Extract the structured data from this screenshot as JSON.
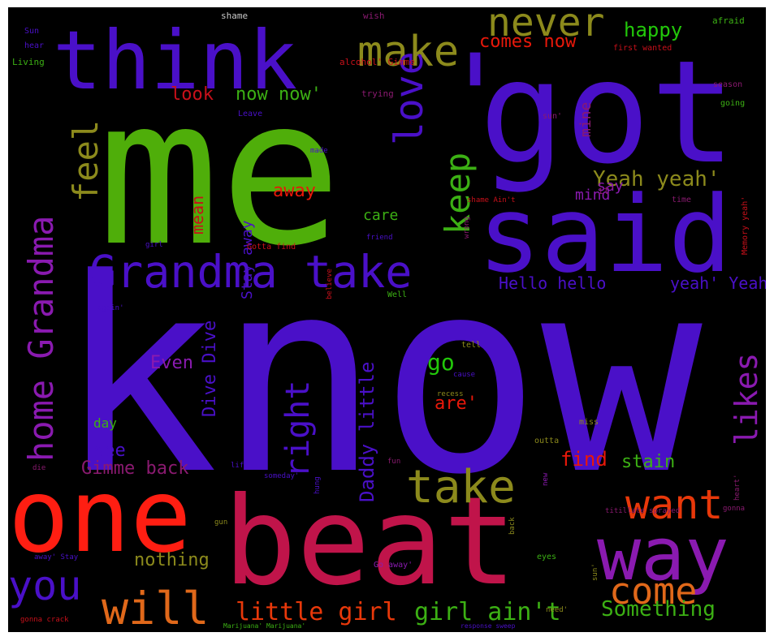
{
  "wordcloud": {
    "background": "#000000",
    "words": [
      {
        "text": "know",
        "color": "#4a10c8"
      },
      {
        "text": "me",
        "color": "#4fae0a"
      },
      {
        "text": "got",
        "color": "#4a10c8"
      },
      {
        "text": "'",
        "color": "#4a10c8"
      },
      {
        "text": "said",
        "color": "#4a10c8"
      },
      {
        "text": "beat",
        "color": "#c0144a"
      },
      {
        "text": "one",
        "color": "#ff1e12"
      },
      {
        "text": "think",
        "color": "#4a10c8"
      },
      {
        "text": "way",
        "color": "#8a1ab0"
      },
      {
        "text": "Grandma take",
        "color": "#4a10c8"
      },
      {
        "text": "make",
        "color": "#8c8a1c"
      },
      {
        "text": "never",
        "color": "#8c8a1c"
      },
      {
        "text": "love",
        "color": "#4a10c8"
      },
      {
        "text": "take",
        "color": "#8c8a1c"
      },
      {
        "text": "want",
        "color": "#e8380a"
      },
      {
        "text": "you",
        "color": "#4a10c8"
      },
      {
        "text": "will",
        "color": "#e0681a"
      },
      {
        "text": "come",
        "color": "#e0681a"
      },
      {
        "text": "home Grandma",
        "color": "#8a1ab0"
      },
      {
        "text": "feel",
        "color": "#8c8a1c"
      },
      {
        "text": "keep",
        "color": "#3cb014"
      },
      {
        "text": "right",
        "color": "#4a10c8"
      },
      {
        "text": "likes",
        "color": "#8a1ab0"
      },
      {
        "text": "Yeah yeah'",
        "color": "#8c8a1c"
      },
      {
        "text": "girl ain't",
        "color": "#3cb014"
      },
      {
        "text": "little girl",
        "color": "#e8380a"
      },
      {
        "text": "Something",
        "color": "#3cb014"
      },
      {
        "text": "happy",
        "color": "#22c80a"
      },
      {
        "text": "comes now",
        "color": "#e8180a"
      },
      {
        "text": "look",
        "color": "#c8101a"
      },
      {
        "text": "now now'",
        "color": "#3cb014"
      },
      {
        "text": "Hello hello",
        "color": "#4a10c8"
      },
      {
        "text": "yeah' Yeah",
        "color": "#4a10c8"
      },
      {
        "text": "Daddy little",
        "color": "#4a10c8"
      },
      {
        "text": "go",
        "color": "#22c80a"
      },
      {
        "text": "are'",
        "color": "#e8180a"
      },
      {
        "text": "find",
        "color": "#e8180a"
      },
      {
        "text": "stain",
        "color": "#3cb014"
      },
      {
        "text": "nothing",
        "color": "#8c8a1c"
      },
      {
        "text": "Gimme back",
        "color": "#8a1a70"
      },
      {
        "text": "see",
        "color": "#4a10c8"
      },
      {
        "text": "Dive Dive",
        "color": "#4a10c8"
      },
      {
        "text": "Even",
        "color": "#8a1ab0"
      },
      {
        "text": "mean",
        "color": "#c8101a"
      },
      {
        "text": "Stay away",
        "color": "#4a10c8"
      },
      {
        "text": "away",
        "color": "#e8180a"
      },
      {
        "text": "care",
        "color": "#3cb014"
      },
      {
        "text": "mind",
        "color": "#8a1ab0"
      },
      {
        "text": "say",
        "color": "#8a1ab0"
      },
      {
        "text": "mine",
        "color": "#8a1a70"
      },
      {
        "text": "day",
        "color": "#3cb014"
      },
      {
        "text": "shame",
        "color": "#c8c8c8"
      },
      {
        "text": "wish",
        "color": "#8a1a70"
      },
      {
        "text": "afraid",
        "color": "#3cb014"
      },
      {
        "text": "Sun",
        "color": "#4a10c8"
      },
      {
        "text": "hear",
        "color": "#4a10c8"
      },
      {
        "text": "Living",
        "color": "#3cb014"
      },
      {
        "text": "alcohol' Gimme",
        "color": "#c8101a"
      },
      {
        "text": "first wanted",
        "color": "#c8101a"
      },
      {
        "text": "trying",
        "color": "#8a1a70"
      },
      {
        "text": "Leave",
        "color": "#4a10c8"
      },
      {
        "text": "season",
        "color": "#8a1a70"
      },
      {
        "text": "going",
        "color": "#3cb014"
      },
      {
        "text": "sun'",
        "color": "#8a1a70"
      },
      {
        "text": "made",
        "color": "#4a10c8"
      },
      {
        "text": "shame Ain't",
        "color": "#c8101a"
      },
      {
        "text": "time",
        "color": "#8a1a70"
      },
      {
        "text": "Memory yeah'",
        "color": "#c8101a"
      },
      {
        "text": "it'",
        "color": "#8a1a70"
      },
      {
        "text": "Gotta find",
        "color": "#c8101a"
      },
      {
        "text": "friend",
        "color": "#4a10c8"
      },
      {
        "text": "girl",
        "color": "#4a10c8"
      },
      {
        "text": "wrong",
        "color": "#8a1a70"
      },
      {
        "text": "believe",
        "color": "#c8101a"
      },
      {
        "text": "Well",
        "color": "#3cb014"
      },
      {
        "text": "again'",
        "color": "#4a10c8"
      },
      {
        "text": "tell",
        "color": "#8c8a1c"
      },
      {
        "text": "cause",
        "color": "#4a10c8"
      },
      {
        "text": "recess",
        "color": "#8c8a1c"
      },
      {
        "text": "miss",
        "color": "#8c8a1c"
      },
      {
        "text": "outta",
        "color": "#8c8a1c"
      },
      {
        "text": "heart'",
        "color": "#8a1a70"
      },
      {
        "text": "fun",
        "color": "#8a1a70"
      },
      {
        "text": "life",
        "color": "#4a10c8"
      },
      {
        "text": "die",
        "color": "#8a1a70"
      },
      {
        "text": "hung",
        "color": "#4a10c8"
      },
      {
        "text": "someday'",
        "color": "#4a10c8"
      },
      {
        "text": "new",
        "color": "#8a1ab0"
      },
      {
        "text": "back",
        "color": "#8c8a1c"
      },
      {
        "text": "titillate sprayed",
        "color": "#8a1a70"
      },
      {
        "text": "gonna",
        "color": "#8a1a70"
      },
      {
        "text": "gun",
        "color": "#8c8a1c"
      },
      {
        "text": "away' Stay",
        "color": "#4a10c8"
      },
      {
        "text": "Go away'",
        "color": "#8a1ab0"
      },
      {
        "text": "eyes",
        "color": "#3cb014"
      },
      {
        "text": "sun'",
        "color": "#8c8a1c"
      },
      {
        "text": "need'",
        "color": "#8c8a1c"
      },
      {
        "text": "gonna crack",
        "color": "#c8101a"
      },
      {
        "text": "Marijuana' Marijuana'",
        "color": "#3cb014"
      },
      {
        "text": "response sweep",
        "color": "#4a10c8"
      }
    ]
  }
}
